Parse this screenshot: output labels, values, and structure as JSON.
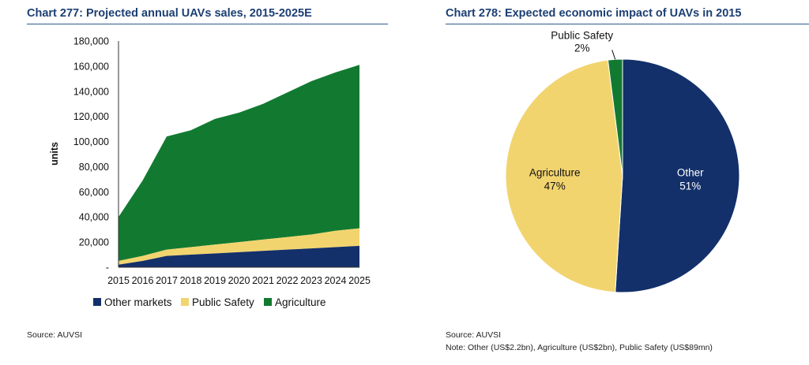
{
  "charts": {
    "left": {
      "title": "Chart 277: Projected annual UAVs sales, 2015-2025E",
      "source": "Source: AUVSI"
    },
    "right": {
      "title": "Chart 278: Expected economic impact of UAVs in 2015",
      "source": "Source: AUVSI",
      "note": "Note: Other (US$2.2bn), Agriculture (US$2bn), Public Safety (US$89mn)"
    }
  },
  "colors": {
    "other": "#13306a",
    "public_safety": "#f2d46f",
    "agriculture": "#127a30",
    "title": "#1c3f73"
  },
  "chart_data": [
    {
      "type": "area",
      "stacked": true,
      "title": "Chart 277: Projected annual UAVs sales, 2015-2025E",
      "xlabel": "",
      "ylabel": "units",
      "ylim": [
        0,
        180000
      ],
      "yticks": [
        0,
        20000,
        40000,
        60000,
        80000,
        100000,
        120000,
        140000,
        160000,
        180000
      ],
      "ytick_labels": [
        "-",
        "20,000",
        "40,000",
        "60,000",
        "80,000",
        "100,000",
        "120,000",
        "140,000",
        "160,000",
        "180,000"
      ],
      "categories": [
        "2015",
        "2016",
        "2017",
        "2018",
        "2019",
        "2020",
        "2021",
        "2022",
        "2023",
        "2024",
        "2025"
      ],
      "series": [
        {
          "name": "Other markets",
          "color_key": "other",
          "values": [
            2000,
            5000,
            9000,
            10000,
            11000,
            12000,
            13000,
            14000,
            15000,
            16000,
            17000
          ]
        },
        {
          "name": "Public Safety",
          "color_key": "public_safety",
          "values": [
            3000,
            4000,
            5000,
            6000,
            7000,
            8000,
            9000,
            10000,
            11000,
            13000,
            14000
          ]
        },
        {
          "name": "Agriculture",
          "color_key": "agriculture",
          "values": [
            35000,
            60000,
            90000,
            93000,
            100000,
            103000,
            108000,
            115000,
            122000,
            126000,
            130000
          ]
        }
      ],
      "legend": {
        "position": "bottom",
        "entries": [
          "Other markets",
          "Public Safety",
          "Agriculture"
        ]
      },
      "grid": false
    },
    {
      "type": "pie",
      "title": "Chart 278: Expected economic impact of UAVs in 2015",
      "slices": [
        {
          "label": "Other",
          "value": 51,
          "value_label": "51%",
          "color_key": "other"
        },
        {
          "label": "Agriculture",
          "value": 47,
          "value_label": "47%",
          "color_key": "agriculture_pie"
        },
        {
          "label": "Public Safety",
          "value": 2,
          "value_label": "2%",
          "color_key": "agriculture"
        }
      ],
      "pie_colors": {
        "Other": "#13306a",
        "Agriculture": "#f2d46f",
        "Public Safety": "#127a30"
      },
      "start": "12 o'clock, clockwise"
    }
  ]
}
